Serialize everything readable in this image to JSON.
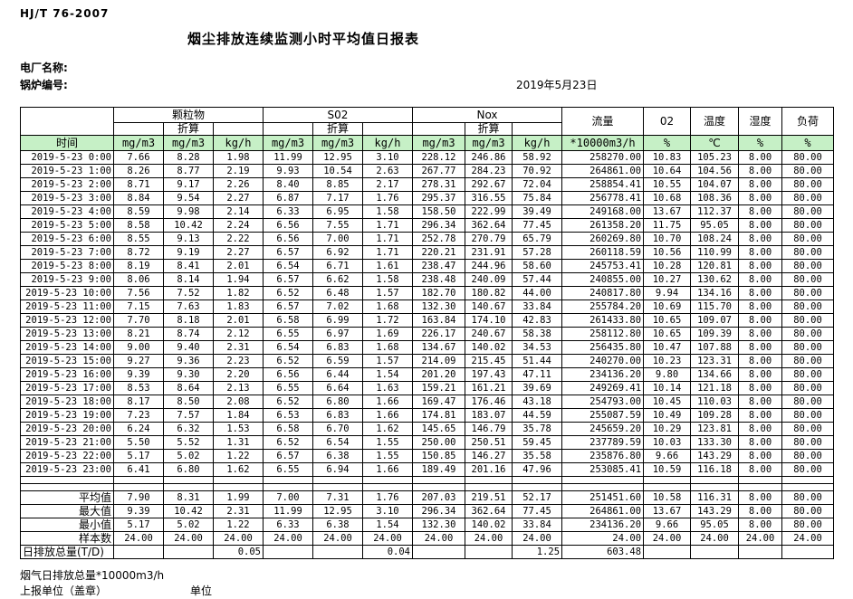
{
  "page": {
    "standard_code": "HJ/T 76-2007",
    "title": "烟尘排放连续监测小时平均值日报表",
    "plant_name_label": "电厂名称:",
    "boiler_no_label": "锅炉编号:",
    "date": "2019年5月23日",
    "footer": {
      "flue_total_label": "烟气日排放总量*10000m3/h",
      "report_unit_label": "上报单位（盖章）",
      "unit_label": "单位"
    }
  },
  "colors": {
    "header_green": "#c6f0c6",
    "grid_line": "#000000"
  },
  "table": {
    "header": {
      "time": "时间",
      "groups": [
        {
          "label": "颗粒物",
          "sub": "折算",
          "units": [
            "mg/m3",
            "mg/m3",
            "kg/h"
          ]
        },
        {
          "label": "S02",
          "sub": "折算",
          "units": [
            "mg/m3",
            "mg/m3",
            "kg/h"
          ]
        },
        {
          "label": "Nox",
          "sub": "折算",
          "units": [
            "mg/m3",
            "mg/m3",
            "kg/h"
          ]
        }
      ],
      "singles": [
        {
          "label": "流量",
          "unit": "*10000m3/h"
        },
        {
          "label": "02",
          "unit": "%"
        },
        {
          "label": "温度",
          "unit": "℃"
        },
        {
          "label": "湿度",
          "unit": "%"
        },
        {
          "label": "负荷",
          "unit": "%"
        }
      ]
    },
    "rows": [
      [
        "2019-5-23 0:00",
        "7.66",
        "8.28",
        "1.98",
        "11.99",
        "12.95",
        "3.10",
        "228.12",
        "246.86",
        "58.92",
        "258270.00",
        "10.83",
        "105.23",
        "8.00",
        "80.00"
      ],
      [
        "2019-5-23 1:00",
        "8.26",
        "8.77",
        "2.19",
        "9.93",
        "10.54",
        "2.63",
        "267.77",
        "284.23",
        "70.92",
        "264861.00",
        "10.64",
        "104.56",
        "8.00",
        "80.00"
      ],
      [
        "2019-5-23 2:00",
        "8.71",
        "9.17",
        "2.26",
        "8.40",
        "8.85",
        "2.17",
        "278.31",
        "292.67",
        "72.04",
        "258854.41",
        "10.55",
        "104.07",
        "8.00",
        "80.00"
      ],
      [
        "2019-5-23 3:00",
        "8.84",
        "9.54",
        "2.27",
        "6.87",
        "7.17",
        "1.76",
        "295.37",
        "316.55",
        "75.84",
        "256778.41",
        "10.68",
        "108.36",
        "8.00",
        "80.00"
      ],
      [
        "2019-5-23 4:00",
        "8.59",
        "9.98",
        "2.14",
        "6.33",
        "6.95",
        "1.58",
        "158.50",
        "222.99",
        "39.49",
        "249168.00",
        "13.67",
        "112.37",
        "8.00",
        "80.00"
      ],
      [
        "2019-5-23 5:00",
        "8.58",
        "10.42",
        "2.24",
        "6.56",
        "7.55",
        "1.71",
        "296.34",
        "362.64",
        "77.45",
        "261358.20",
        "11.75",
        "95.05",
        "8.00",
        "80.00"
      ],
      [
        "2019-5-23 6:00",
        "8.55",
        "9.13",
        "2.22",
        "6.56",
        "7.00",
        "1.71",
        "252.78",
        "270.79",
        "65.79",
        "260269.80",
        "10.70",
        "108.24",
        "8.00",
        "80.00"
      ],
      [
        "2019-5-23 7:00",
        "8.72",
        "9.19",
        "2.27",
        "6.57",
        "6.92",
        "1.71",
        "220.21",
        "231.91",
        "57.28",
        "260118.59",
        "10.56",
        "110.99",
        "8.00",
        "80.00"
      ],
      [
        "2019-5-23 8:00",
        "8.19",
        "8.41",
        "2.01",
        "6.54",
        "6.71",
        "1.61",
        "238.47",
        "244.96",
        "58.60",
        "245753.41",
        "10.28",
        "120.81",
        "8.00",
        "80.00"
      ],
      [
        "2019-5-23 9:00",
        "8.06",
        "8.14",
        "1.94",
        "6.57",
        "6.62",
        "1.58",
        "238.48",
        "240.09",
        "57.44",
        "240855.00",
        "10.27",
        "130.62",
        "8.00",
        "80.00"
      ],
      [
        "2019-5-23 10:00",
        "7.56",
        "7.52",
        "1.82",
        "6.52",
        "6.48",
        "1.57",
        "182.70",
        "180.82",
        "44.00",
        "240817.80",
        "9.94",
        "134.16",
        "8.00",
        "80.00"
      ],
      [
        "2019-5-23 11:00",
        "7.15",
        "7.63",
        "1.83",
        "6.57",
        "7.02",
        "1.68",
        "132.30",
        "140.67",
        "33.84",
        "255784.20",
        "10.69",
        "115.70",
        "8.00",
        "80.00"
      ],
      [
        "2019-5-23 12:00",
        "7.70",
        "8.18",
        "2.01",
        "6.58",
        "6.99",
        "1.72",
        "163.84",
        "174.10",
        "42.83",
        "261433.80",
        "10.65",
        "109.07",
        "8.00",
        "80.00"
      ],
      [
        "2019-5-23 13:00",
        "8.21",
        "8.74",
        "2.12",
        "6.55",
        "6.97",
        "1.69",
        "226.17",
        "240.67",
        "58.38",
        "258112.80",
        "10.65",
        "109.39",
        "8.00",
        "80.00"
      ],
      [
        "2019-5-23 14:00",
        "9.00",
        "9.40",
        "2.31",
        "6.54",
        "6.83",
        "1.68",
        "134.67",
        "140.02",
        "34.53",
        "256435.80",
        "10.47",
        "107.88",
        "8.00",
        "80.00"
      ],
      [
        "2019-5-23 15:00",
        "9.27",
        "9.36",
        "2.23",
        "6.52",
        "6.59",
        "1.57",
        "214.09",
        "215.45",
        "51.44",
        "240270.00",
        "10.23",
        "123.31",
        "8.00",
        "80.00"
      ],
      [
        "2019-5-23 16:00",
        "9.39",
        "9.30",
        "2.20",
        "6.56",
        "6.44",
        "1.54",
        "201.20",
        "197.43",
        "47.11",
        "234136.20",
        "9.80",
        "134.66",
        "8.00",
        "80.00"
      ],
      [
        "2019-5-23 17:00",
        "8.53",
        "8.64",
        "2.13",
        "6.55",
        "6.64",
        "1.63",
        "159.21",
        "161.21",
        "39.69",
        "249269.41",
        "10.14",
        "121.18",
        "8.00",
        "80.00"
      ],
      [
        "2019-5-23 18:00",
        "8.17",
        "8.50",
        "2.08",
        "6.52",
        "6.80",
        "1.66",
        "169.47",
        "176.46",
        "43.18",
        "254793.00",
        "10.45",
        "110.03",
        "8.00",
        "80.00"
      ],
      [
        "2019-5-23 19:00",
        "7.23",
        "7.57",
        "1.84",
        "6.53",
        "6.83",
        "1.66",
        "174.81",
        "183.07",
        "44.59",
        "255087.59",
        "10.49",
        "109.28",
        "8.00",
        "80.00"
      ],
      [
        "2019-5-23 20:00",
        "6.24",
        "6.32",
        "1.53",
        "6.58",
        "6.70",
        "1.62",
        "145.65",
        "146.79",
        "35.78",
        "245659.20",
        "10.29",
        "123.81",
        "8.00",
        "80.00"
      ],
      [
        "2019-5-23 21:00",
        "5.50",
        "5.52",
        "1.31",
        "6.52",
        "6.54",
        "1.55",
        "250.00",
        "250.51",
        "59.45",
        "237789.59",
        "10.03",
        "133.30",
        "8.00",
        "80.00"
      ],
      [
        "2019-5-23 22:00",
        "5.17",
        "5.02",
        "1.22",
        "6.57",
        "6.38",
        "1.55",
        "150.85",
        "146.27",
        "35.58",
        "235876.80",
        "9.66",
        "143.29",
        "8.00",
        "80.00"
      ],
      [
        "2019-5-23 23:00",
        "6.41",
        "6.80",
        "1.62",
        "6.55",
        "6.94",
        "1.66",
        "189.49",
        "201.16",
        "47.96",
        "253085.41",
        "10.59",
        "116.18",
        "8.00",
        "80.00"
      ]
    ],
    "summary": [
      {
        "label": "平均值",
        "values": [
          "7.90",
          "8.31",
          "1.99",
          "7.00",
          "7.31",
          "1.76",
          "207.03",
          "219.51",
          "52.17",
          "251451.60",
          "10.58",
          "116.31",
          "8.00",
          "80.00"
        ]
      },
      {
        "label": "最大值",
        "values": [
          "9.39",
          "10.42",
          "2.31",
          "11.99",
          "12.95",
          "3.10",
          "296.34",
          "362.64",
          "77.45",
          "264861.00",
          "13.67",
          "143.29",
          "8.00",
          "80.00"
        ]
      },
      {
        "label": "最小值",
        "values": [
          "5.17",
          "5.02",
          "1.22",
          "6.33",
          "6.38",
          "1.54",
          "132.30",
          "140.02",
          "33.84",
          "234136.20",
          "9.66",
          "95.05",
          "8.00",
          "80.00"
        ]
      },
      {
        "label": "样本数",
        "values": [
          "24.00",
          "24.00",
          "24.00",
          "24.00",
          "24.00",
          "24.00",
          "24.00",
          "24.00",
          "24.00",
          "24.00",
          "24.00",
          "24.00",
          "24.00",
          "24.00"
        ]
      },
      {
        "label": "日排放总量(T/D)",
        "values": [
          "",
          "",
          "0.05",
          "",
          "",
          "0.04",
          "",
          "",
          "1.25",
          "603.48",
          "",
          "",
          "",
          ""
        ]
      }
    ]
  }
}
